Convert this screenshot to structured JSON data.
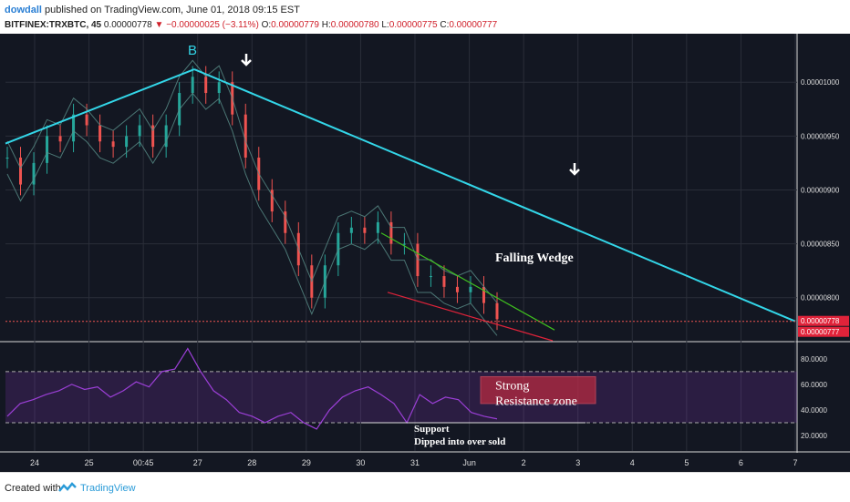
{
  "header": {
    "user": "dowdall",
    "published": "published on TradingView.com, June 01, 2018 09:15 EST",
    "symbol": "BITFINEX:TRXBTC, 45",
    "price": "0.00000778",
    "change": "−0.00000025 (−3.11%)",
    "open_label": "O:",
    "open": "0.00000779",
    "high_label": "H:",
    "high": "0.00000780",
    "low_label": "L:",
    "low": "0.00000775",
    "close_label": "C:",
    "close": "0.00000777"
  },
  "footer": {
    "created": "Created with",
    "brand": "TradingView"
  },
  "colors": {
    "background": "#131722",
    "up": "#26a69a",
    "down": "#ef5350",
    "trendline": "#33d6e8",
    "wedge_upper": "#3fbf1f",
    "wedge_lower": "#e0233a",
    "rsi": "#9b3fd6",
    "zone": "#b52a40"
  },
  "chart_data": [
    {
      "type": "candlestick",
      "title": "",
      "xlabel": "",
      "ylabel": "",
      "x_tick_labels": [
        "24",
        "25",
        "00:45",
        "27",
        "28",
        "29",
        "30",
        "31",
        "Jun",
        "2",
        "3",
        "4",
        "5",
        "6",
        "7"
      ],
      "y_tick_labels": [
        "0.00001000",
        "0.00000950",
        "0.00000900",
        "0.00000850",
        "0.00000800"
      ],
      "ylim": [
        7.6e-06,
        1.045e-05
      ],
      "price_badges": [
        "0.00000778",
        "0.00000777"
      ],
      "close_series": [
        9.3e-06,
        9.05e-06,
        9.25e-06,
        9.5e-06,
        9.45e-06,
        9.7e-06,
        9.6e-06,
        9.45e-06,
        9.4e-06,
        9.5e-06,
        9.6e-06,
        9.4e-06,
        9.6e-06,
        9.9e-06,
        1.005e-05,
        9.9e-06,
        1e-05,
        9.7e-06,
        9.3e-06,
        9e-06,
        8.8e-06,
        8.6e-06,
        8.3e-06,
        8e-06,
        8.3e-06,
        8.6e-06,
        8.65e-06,
        8.6e-06,
        8.7e-06,
        8.5e-06,
        8.5e-06,
        8.2e-06,
        8.2e-06,
        8.1e-06,
        8.05e-06,
        8.1e-06,
        7.95e-06,
        7.8e-06
      ],
      "annotations": [
        {
          "text": "B",
          "kind": "label"
        },
        {
          "text": "Falling Wedge",
          "kind": "label"
        },
        {
          "text": "",
          "kind": "down-arrow-icon"
        },
        {
          "text": "",
          "kind": "down-arrow-icon"
        },
        {
          "kind": "trendline",
          "desc": "cyan line from 24 rising to peak B then falling to 7"
        },
        {
          "kind": "falling-wedge",
          "desc": "green upper and red lower converging lines"
        }
      ]
    },
    {
      "type": "line",
      "name": "RSI",
      "y_tick_labels": [
        "80.0000",
        "60.0000",
        "40.0000",
        "20.0000"
      ],
      "ylim": [
        10,
        92
      ],
      "bands": [
        70,
        30
      ],
      "values": [
        35,
        45,
        48,
        52,
        55,
        60,
        56,
        58,
        50,
        55,
        62,
        58,
        70,
        72,
        88,
        70,
        55,
        48,
        38,
        35,
        30,
        35,
        38,
        30,
        25,
        40,
        50,
        55,
        58,
        52,
        45,
        30,
        52,
        45,
        50,
        48,
        38,
        35,
        33
      ],
      "annotations": [
        {
          "text_lines": [
            "Strong",
            "Resistance zone"
          ],
          "kind": "zone-label"
        },
        {
          "text_lines": [
            "Support",
            "Dipped into over sold"
          ],
          "kind": "label"
        }
      ]
    }
  ]
}
